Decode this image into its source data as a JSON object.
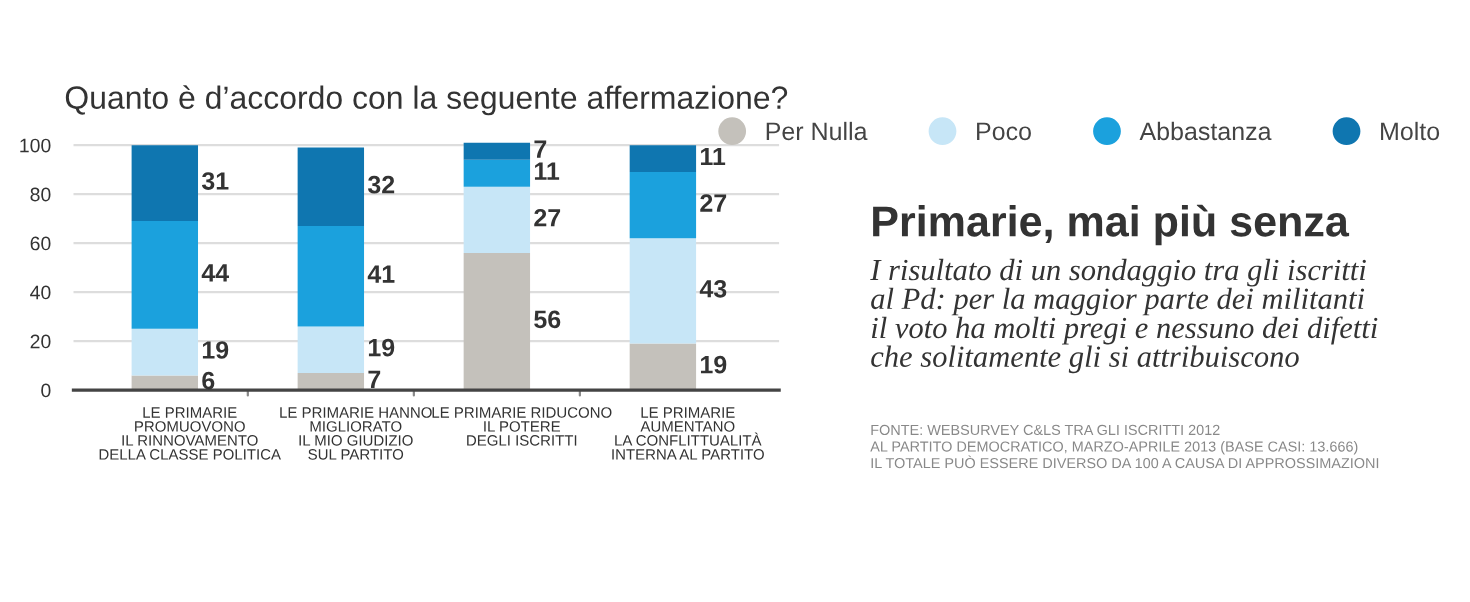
{
  "chart_data": {
    "type": "bar",
    "stacked": true,
    "title": "Primarie, mai più senza",
    "subtitle": "I risultato di un sondaggio tra gli iscritti\nal Pd: per la maggior parte dei militanti\nil voto ha molti pregi e nessuno dei difetti\nche solitamente gli si attribuiscono",
    "annotations": [
      "Quanto è d’accordo con la seguente affermazione?",
      "FONTE: WEBSURVEY C&LS TRA GLI ISCRITTI 2012\nAL PARTITO DEMOCRATICO, MARZO-APRILE 2013 (BASE CASI: 13.666)\nIL TOTALE PUÒ ESSERE DIVERSO DA 100 A CAUSA DI APPROSSIMAZIONI"
    ],
    "categories": [
      "LE PRIMARIE\nPROMUOVONO\nIL RINNOVAMENTO\nDELLA CLASSE POLITICA",
      "LE PRIMARIE HANNO\nMIGLIORATO\nIL MIO GIUDIZIO\nSUL PARTITO",
      "LE PRIMARIE RIDUCONO\nIL POTERE\nDEGLI ISCRITTI",
      "LE PRIMARIE\nAUMENTANO\nLA CONFLITTUALITÀ\nINTERNA AL PARTITO"
    ],
    "series": [
      {
        "name": "Per Nulla",
        "color": "#c4c1bb",
        "values": [
          6,
          7,
          56,
          19
        ]
      },
      {
        "name": "Poco",
        "color": "#c7e6f7",
        "values": [
          19,
          19,
          27,
          43
        ]
      },
      {
        "name": "Abbastanza",
        "color": "#1ba1dd",
        "values": [
          44,
          41,
          11,
          27
        ]
      },
      {
        "name": "Molto",
        "color": "#0f76b0",
        "values": [
          31,
          32,
          7,
          11
        ]
      }
    ],
    "ylim": [
      0,
      102
    ],
    "yticks": [
      0,
      20,
      40,
      60,
      80,
      100
    ],
    "grid": "y",
    "legend": "top right",
    "data_labels": true,
    "marker": "circle"
  }
}
